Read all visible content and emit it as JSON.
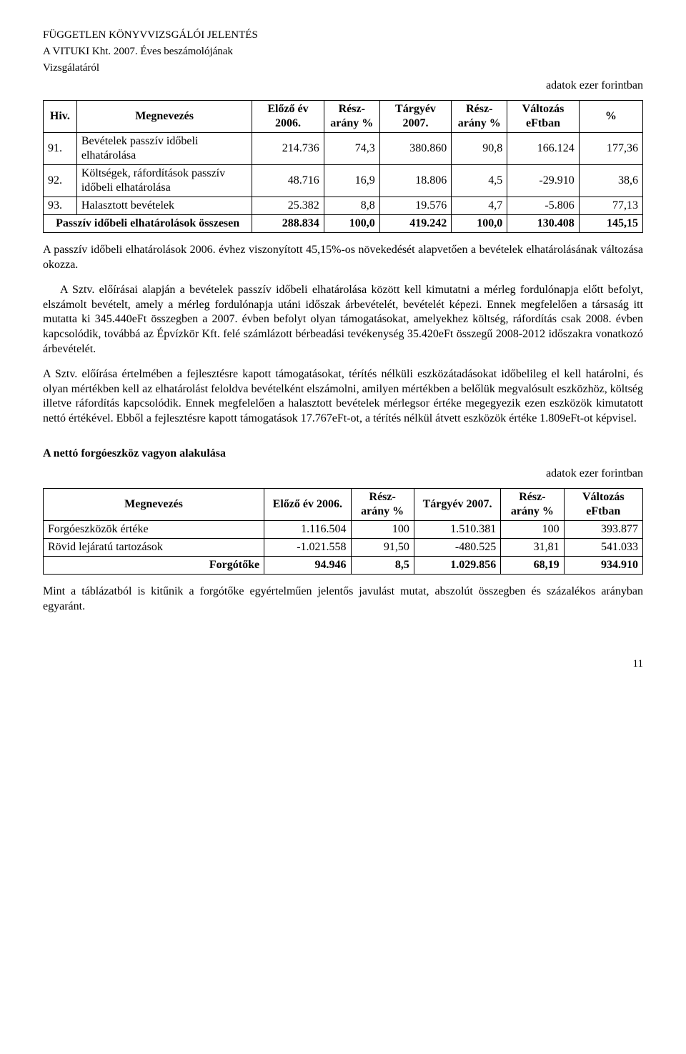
{
  "header": {
    "line1": "FÜGGETLEN KÖNYVVIZSGÁLÓI JELENTÉS",
    "line2": "A VITUKI Kht. 2007. Éves beszámolójának",
    "line3": "Vizsgálatáról"
  },
  "unit_label": "adatok ezer forintban",
  "table1": {
    "headers": [
      "Hiv.",
      "Megnevezés",
      "Előző év 2006.",
      "Rész-arány %",
      "Tárgyév 2007.",
      "Rész-arány %",
      "Változás eFtban",
      "%"
    ],
    "rows": [
      {
        "hiv": "91.",
        "name": "Bevételek passzív időbeli elhatárolása",
        "prev": "214.736",
        "prev_pct": "74,3",
        "curr": "380.860",
        "curr_pct": "90,8",
        "chg": "166.124",
        "pct": "177,36",
        "bold": false
      },
      {
        "hiv": "92.",
        "name": "Költségek, ráfordítások passzív időbeli elhatárolása",
        "prev": "48.716",
        "prev_pct": "16,9",
        "curr": "18.806",
        "curr_pct": "4,5",
        "chg": "-29.910",
        "pct": "38,6",
        "bold": false
      },
      {
        "hiv": "93.",
        "name": "Halasztott bevételek",
        "prev": "25.382",
        "prev_pct": "8,8",
        "curr": "19.576",
        "curr_pct": "4,7",
        "chg": "-5.806",
        "pct": "77,13",
        "bold": false
      },
      {
        "hiv": "",
        "name": "Passzív időbeli elhatárolások összesen",
        "prev": "288.834",
        "prev_pct": "100,0",
        "curr": "419.242",
        "curr_pct": "100,0",
        "chg": "130.408",
        "pct": "145,15",
        "bold": true,
        "span_first": true
      }
    ]
  },
  "para1": "A passzív időbeli elhatárolások 2006. évhez viszonyított 45,15%-os növekedését alapvetően a bevételek elhatárolásának változása okozza.",
  "para2": "A Sztv. előírásai alapján a bevételek passzív időbeli elhatárolása között kell kimutatni a mérleg fordulónapja előtt befolyt, elszámolt bevételt, amely a mérleg fordulónapja utáni időszak árbevételét, bevételét képezi. Ennek megfelelően a társaság itt mutatta ki 345.440eFt összegben a 2007. évben befolyt olyan támogatásokat, amelyekhez költség, ráfordítás csak 2008. évben kapcsolódik, továbbá az Épvízkör Kft. felé számlázott bérbeadási tevékenység 35.420eFt összegű 2008-2012 időszakra vonatkozó árbevételét.",
  "para3": "A Sztv. előírása értelmében a fejlesztésre kapott támogatásokat, térítés nélküli eszközátadásokat időbelileg el kell határolni, és olyan mértékben kell az elhatárolást feloldva bevételként elszámolni, amilyen mértékben a belőlük megvalósult eszközhöz, költség illetve ráfordítás kapcsolódik. Ennek megfelelően a halasztott bevételek mérlegsor értéke megegyezik ezen eszközök kimutatott nettó értékével. Ebből a fejlesztésre kapott támogatások 17.767eFt-ot, a térítés nélkül átvett eszközök értéke 1.809eFt-ot képvisel.",
  "section2_title": "A nettó forgóeszköz vagyon alakulása",
  "table2": {
    "headers": [
      "Megnevezés",
      "Előző év 2006.",
      "Rész-arány %",
      "Tárgyév 2007.",
      "Rész-arány %",
      "Változás eFtban"
    ],
    "rows": [
      {
        "name": "Forgóeszközök értéke",
        "prev": "1.116.504",
        "prev_pct": "100",
        "curr": "1.510.381",
        "curr_pct": "100",
        "chg": "393.877",
        "bold": false
      },
      {
        "name": "Rövid lejáratú tartozások",
        "prev": "-1.021.558",
        "prev_pct": "91,50",
        "curr": "-480.525",
        "curr_pct": "31,81",
        "chg": "541.033",
        "bold": false
      },
      {
        "name": "Forgótőke",
        "prev": "94.946",
        "prev_pct": "8,5",
        "curr": "1.029.856",
        "curr_pct": "68,19",
        "chg": "934.910",
        "bold": true
      }
    ]
  },
  "para4": "Mint a táblázatból is kitűnik a forgótőke egyértelműen jelentős javulást mutat, abszolút összegben és százalékos arányban egyaránt.",
  "page_number": "11"
}
